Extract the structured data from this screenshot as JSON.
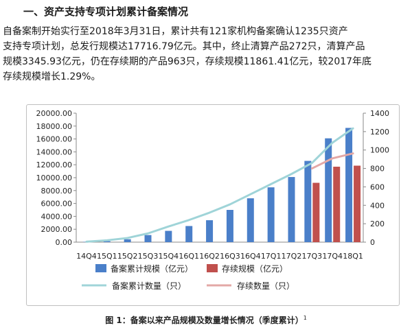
{
  "section": {
    "heading": "一、资产支持专项计划累计备案情况",
    "paragraph_lines": [
      "自备案制开始实行至2018年3月31日，累计共有121家机构备案确认1235只资产",
      "支持专项计划，总发行规模达17716.79亿元。其中，终止清算产品272只，清算产品",
      "规模3345.93亿元，仍在存续期的产品963只，存续规模11861.41亿元，较2017年底",
      "存续规模增长1.29%。"
    ]
  },
  "caption": {
    "text": "图 1：备案以来产品规模及数量增长情况（季度累计）",
    "note": "1"
  },
  "colors": {
    "bar_filed": "#4a7fc9",
    "bar_outstanding": "#c0504d",
    "line_filed": "#9fd4d8",
    "line_outstanding": "#e3a8a6",
    "axis": "#888888"
  },
  "chart_data": {
    "type": "bar+line",
    "categories": [
      "14Q4",
      "15Q1",
      "15Q2",
      "15Q3",
      "15Q4",
      "16Q1",
      "16Q2",
      "16Q3",
      "16Q4",
      "17Q1",
      "17Q2",
      "17Q3",
      "17Q4",
      "18Q1"
    ],
    "y_left": {
      "lim": [
        0,
        20000
      ],
      "ticks": [
        "0.00",
        "2000.00",
        "4000.00",
        "6000.00",
        "8000.00",
        "10000.00",
        "12000.00",
        "14000.00",
        "16000.00",
        "18000.00",
        "20000.00"
      ]
    },
    "y_right": {
      "lim": [
        0,
        1400
      ],
      "ticks": [
        "0",
        "200",
        "400",
        "600",
        "800",
        "1000",
        "1200",
        "1400"
      ]
    },
    "series": [
      {
        "name": "备案累计规模（亿元）",
        "kind": "bar",
        "axis": "left",
        "values": [
          50,
          150,
          450,
          1100,
          1750,
          2500,
          3400,
          5000,
          6800,
          8500,
          10100,
          12600,
          16100,
          17716.79
        ]
      },
      {
        "name": "存续规模（亿元）",
        "kind": "bar",
        "axis": "left",
        "values": [
          null,
          null,
          null,
          null,
          null,
          null,
          null,
          null,
          null,
          null,
          null,
          9200,
          11700,
          11861.41
        ]
      },
      {
        "name": "备案累计数量（只）",
        "kind": "line",
        "axis": "right",
        "values": [
          5,
          20,
          45,
          95,
          170,
          240,
          320,
          410,
          520,
          630,
          740,
          860,
          1080,
          1235
        ]
      },
      {
        "name": "存续数量（只）",
        "kind": "line",
        "axis": "right",
        "values": [
          null,
          null,
          null,
          null,
          null,
          null,
          null,
          null,
          null,
          null,
          null,
          800,
          910,
          963
        ]
      }
    ],
    "legend_position": "bottom"
  }
}
